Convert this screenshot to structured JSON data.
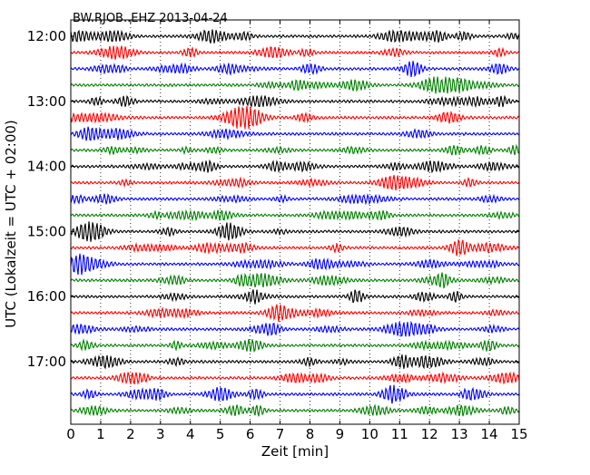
{
  "chart_data": {
    "type": "line",
    "title": "BW.RJOB..EHZ 2013-04-24",
    "xlabel": "Zeit  [min]",
    "ylabel": "UTC (Lokalzeit = UTC + 02:00)",
    "xlim": [
      0,
      15
    ],
    "x_ticks": [
      0,
      1,
      2,
      3,
      4,
      5,
      6,
      7,
      8,
      9,
      10,
      11,
      12,
      13,
      14,
      15
    ],
    "x_tick_labels": [
      "0",
      "1",
      "2",
      "3",
      "4",
      "5",
      "6",
      "7",
      "8",
      "9",
      "10",
      "11",
      "12",
      "13",
      "14",
      "15"
    ],
    "row_interval_minutes": 15,
    "row_start": "12:00",
    "row_count": 24,
    "y_tick_labels": [
      "12:00",
      "13:00",
      "14:00",
      "15:00",
      "16:00",
      "17:00"
    ],
    "y_tick_every_n_rows": 4,
    "grid": {
      "x": "dotted vertical lines at each minute",
      "y": false
    },
    "series_colors": [
      "#000000",
      "#ff0000",
      "#0000ff",
      "#008000"
    ],
    "traces": [
      {
        "start": "12:00",
        "color": "#000000"
      },
      {
        "start": "12:15",
        "color": "#ff0000"
      },
      {
        "start": "12:30",
        "color": "#0000ff"
      },
      {
        "start": "12:45",
        "color": "#008000"
      },
      {
        "start": "13:00",
        "color": "#000000"
      },
      {
        "start": "13:15",
        "color": "#ff0000"
      },
      {
        "start": "13:30",
        "color": "#0000ff"
      },
      {
        "start": "13:45",
        "color": "#008000"
      },
      {
        "start": "14:00",
        "color": "#000000"
      },
      {
        "start": "14:15",
        "color": "#ff0000"
      },
      {
        "start": "14:30",
        "color": "#0000ff"
      },
      {
        "start": "14:45",
        "color": "#008000"
      },
      {
        "start": "15:00",
        "color": "#000000"
      },
      {
        "start": "15:15",
        "color": "#ff0000"
      },
      {
        "start": "15:30",
        "color": "#0000ff"
      },
      {
        "start": "15:45",
        "color": "#008000"
      },
      {
        "start": "16:00",
        "color": "#000000"
      },
      {
        "start": "16:15",
        "color": "#ff0000"
      },
      {
        "start": "16:30",
        "color": "#0000ff"
      },
      {
        "start": "16:45",
        "color": "#008000"
      },
      {
        "start": "17:00",
        "color": "#000000"
      },
      {
        "start": "17:15",
        "color": "#ff0000"
      },
      {
        "start": "17:30",
        "color": "#0000ff"
      },
      {
        "start": "17:45",
        "color": "#008000"
      }
    ]
  }
}
